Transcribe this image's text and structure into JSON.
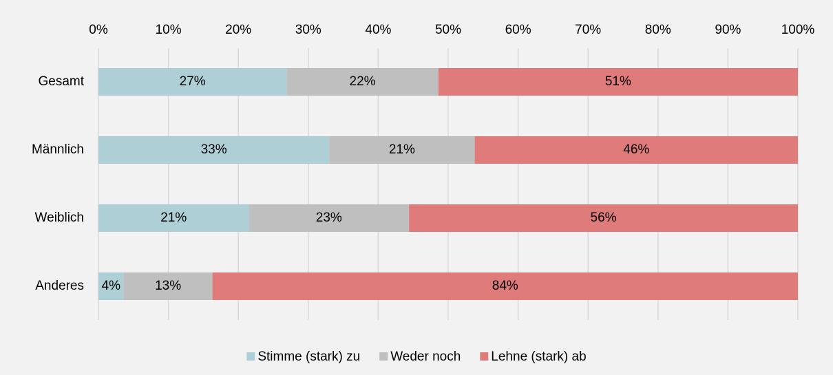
{
  "chart_data": {
    "type": "stacked-bar-horizontal",
    "categories": [
      "Gesamt",
      "Männlich",
      "Weiblich",
      "Anderes"
    ],
    "series": [
      {
        "name": "Stimme (stark) zu",
        "color": "#aecfd6",
        "values": [
          26.9,
          33.0,
          21.5,
          3.6
        ],
        "value_labels": [
          "27%",
          "33%",
          "21%",
          "4%"
        ]
      },
      {
        "name": "Weder noch",
        "color": "#bfbfbf",
        "values": [
          21.7,
          20.8,
          22.9,
          12.7
        ],
        "value_labels": [
          "22%",
          "21%",
          "23%",
          "13%"
        ]
      },
      {
        "name": "Lehne (stark) ab",
        "color": "#e07b7b",
        "values": [
          51.4,
          46.2,
          55.6,
          83.7
        ],
        "value_labels": [
          "51%",
          "46%",
          "56%",
          "84%"
        ]
      }
    ],
    "xlim": [
      0,
      100
    ],
    "xticks": [
      {
        "value": 0,
        "label": "0%"
      },
      {
        "value": 10,
        "label": "10%"
      },
      {
        "value": 20,
        "label": "20%"
      },
      {
        "value": 30,
        "label": "30%"
      },
      {
        "value": 40,
        "label": "40%"
      },
      {
        "value": 50,
        "label": "50%"
      },
      {
        "value": 60,
        "label": "60%"
      },
      {
        "value": 70,
        "label": "70%"
      },
      {
        "value": 80,
        "label": "80%"
      },
      {
        "value": 90,
        "label": "90%"
      },
      {
        "value": 100,
        "label": "100%"
      }
    ],
    "grid": true,
    "legend": "bottom"
  }
}
